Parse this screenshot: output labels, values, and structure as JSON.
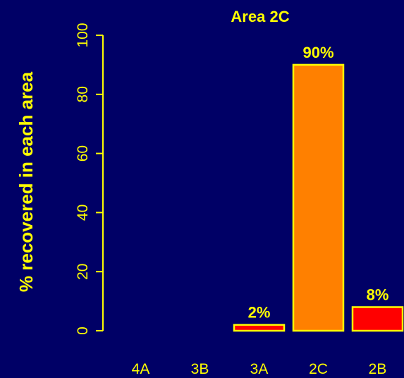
{
  "chart_data": {
    "type": "bar",
    "title": "Area 2C",
    "ylabel": "% recovered in each area",
    "xlabel": "",
    "categories": [
      "4A",
      "3B",
      "3A",
      "2C",
      "2B"
    ],
    "values": [
      0,
      0,
      2,
      90,
      8
    ],
    "data_labels": [
      "",
      "",
      "2%",
      "90%",
      "8%"
    ],
    "ylim": [
      0,
      100
    ],
    "yticks": [
      "0",
      "20",
      "40",
      "60",
      "80",
      "100"
    ],
    "grid": false,
    "colors": {
      "background": "#000066",
      "text": "#FFFF00",
      "bar_outline": "#FFFF00",
      "bar_fills": [
        "#FF0000",
        "#FF0000",
        "#FF0000",
        "#FF8000",
        "#FF0000"
      ]
    }
  }
}
